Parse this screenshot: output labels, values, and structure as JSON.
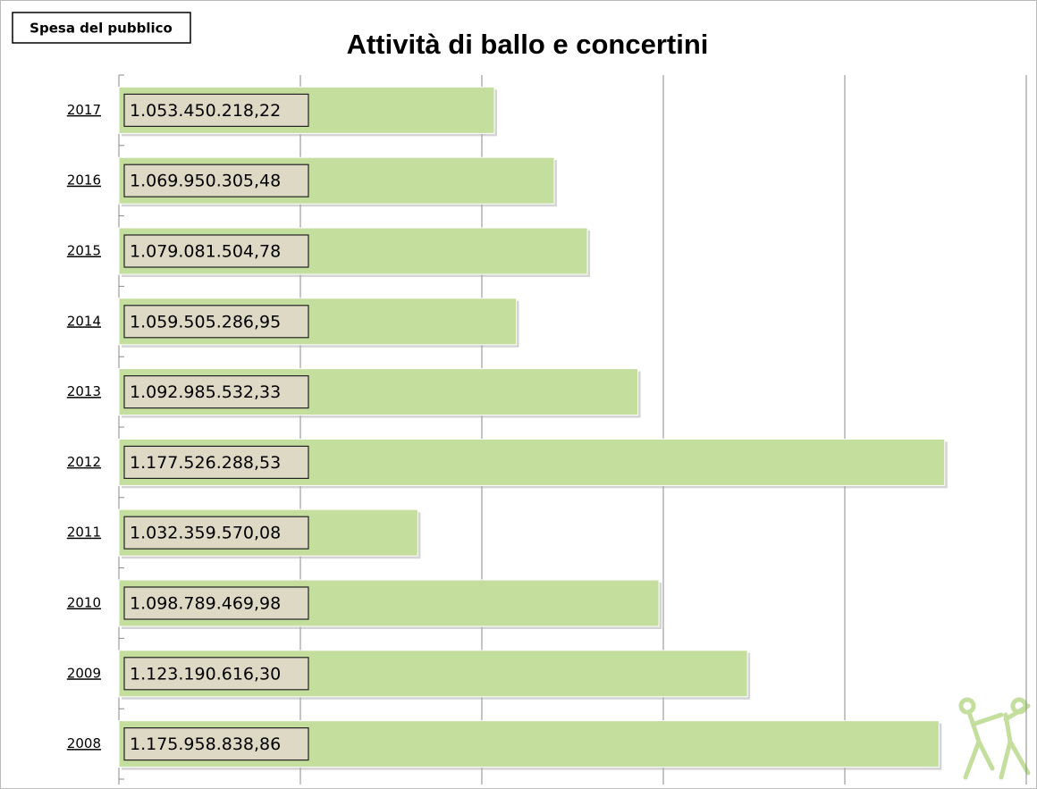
{
  "chart_data": {
    "type": "hbar",
    "title": "Attività di ballo e concertini",
    "subtitle": "Spesa del pubblico",
    "categories": [
      "2017",
      "2016",
      "2015",
      "2014",
      "2013",
      "2012",
      "2011",
      "2010",
      "2009",
      "2008"
    ],
    "values": [
      1053450218.22,
      1069950305.48,
      1079081504.78,
      1059505286.95,
      1092985532.33,
      1177526288.53,
      1032359570.08,
      1098789469.98,
      1123190616.3,
      1175958838.86
    ],
    "value_labels": [
      "1.053.450.218,22",
      "1.069.950.305,48",
      "1.079.081.504,78",
      "1.059.505.286,95",
      "1.092.985.532,33",
      "1.177.526.288,53",
      "1.032.359.570,08",
      "1.098.789.469,98",
      "1.123.190.616,30",
      "1.175.958.838,86"
    ],
    "color": "#c4de9e",
    "xlim": [
      950000000,
      1200000000
    ],
    "xticks": [
      950000000,
      1000000000,
      1050000000,
      1100000000,
      1150000000,
      1200000000
    ],
    "grid": true
  }
}
